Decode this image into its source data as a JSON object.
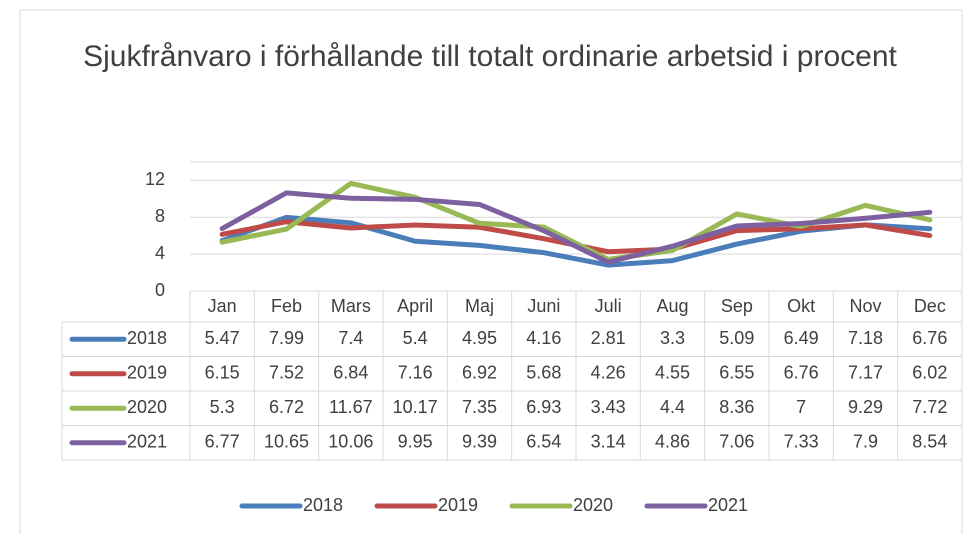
{
  "chart_data": {
    "type": "line",
    "title": "Sjukfrånvaro i förhållande till totalt ordinarie arbetsid i procent",
    "categories": [
      "Jan",
      "Feb",
      "Mars",
      "April",
      "Maj",
      "Juni",
      "Juli",
      "Aug",
      "Sep",
      "Okt",
      "Nov",
      "Dec"
    ],
    "series": [
      {
        "name": "2018",
        "color": "#4a7ebb",
        "values": [
          5.47,
          7.99,
          7.4,
          5.4,
          4.95,
          4.16,
          2.81,
          3.3,
          5.09,
          6.49,
          7.18,
          6.76
        ]
      },
      {
        "name": "2019",
        "color": "#be4b48",
        "values": [
          6.15,
          7.52,
          6.84,
          7.16,
          6.92,
          5.68,
          4.26,
          4.55,
          6.55,
          6.76,
          7.17,
          6.02
        ]
      },
      {
        "name": "2020",
        "color": "#98b954",
        "values": [
          5.3,
          6.72,
          11.67,
          10.17,
          7.35,
          6.93,
          3.43,
          4.4,
          8.36,
          7,
          9.29,
          7.72
        ]
      },
      {
        "name": "2021",
        "color": "#7d60a0",
        "values": [
          6.77,
          10.65,
          10.06,
          9.95,
          9.39,
          6.54,
          3.14,
          4.86,
          7.06,
          7.33,
          7.9,
          8.54
        ]
      }
    ],
    "ylim": [
      0,
      14
    ],
    "yticks": [
      0,
      4,
      8,
      12
    ],
    "grid": true,
    "data_table": true,
    "legend": "bottom"
  }
}
